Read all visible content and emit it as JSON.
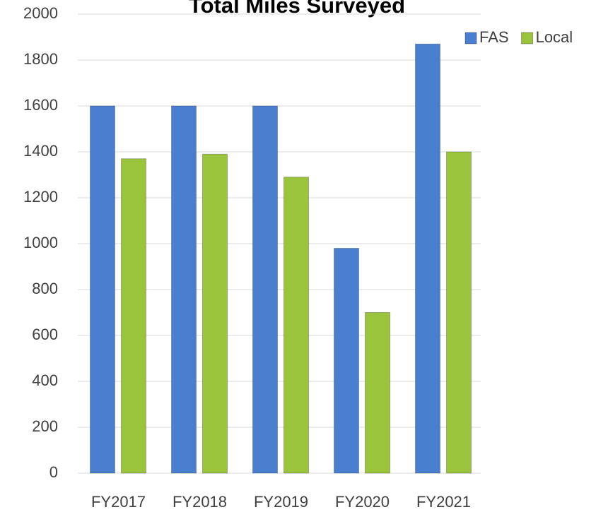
{
  "chart_data": {
    "type": "bar",
    "title": "Total Miles Surveyed",
    "categories": [
      "FY2017",
      "FY2018",
      "FY2019",
      "FY2020",
      "FY2021"
    ],
    "series": [
      {
        "name": "FAS",
        "color": "#4a7fd0",
        "values": [
          1600,
          1600,
          1600,
          980,
          1870
        ]
      },
      {
        "name": "Local",
        "color": "#9bc43d",
        "values": [
          1370,
          1390,
          1290,
          700,
          1400
        ]
      }
    ],
    "ylim": [
      0,
      2000
    ],
    "yticks": [
      0,
      200,
      400,
      600,
      800,
      1000,
      1200,
      1400,
      1600,
      1800,
      2000
    ],
    "grid": true,
    "legend": "top-right"
  }
}
